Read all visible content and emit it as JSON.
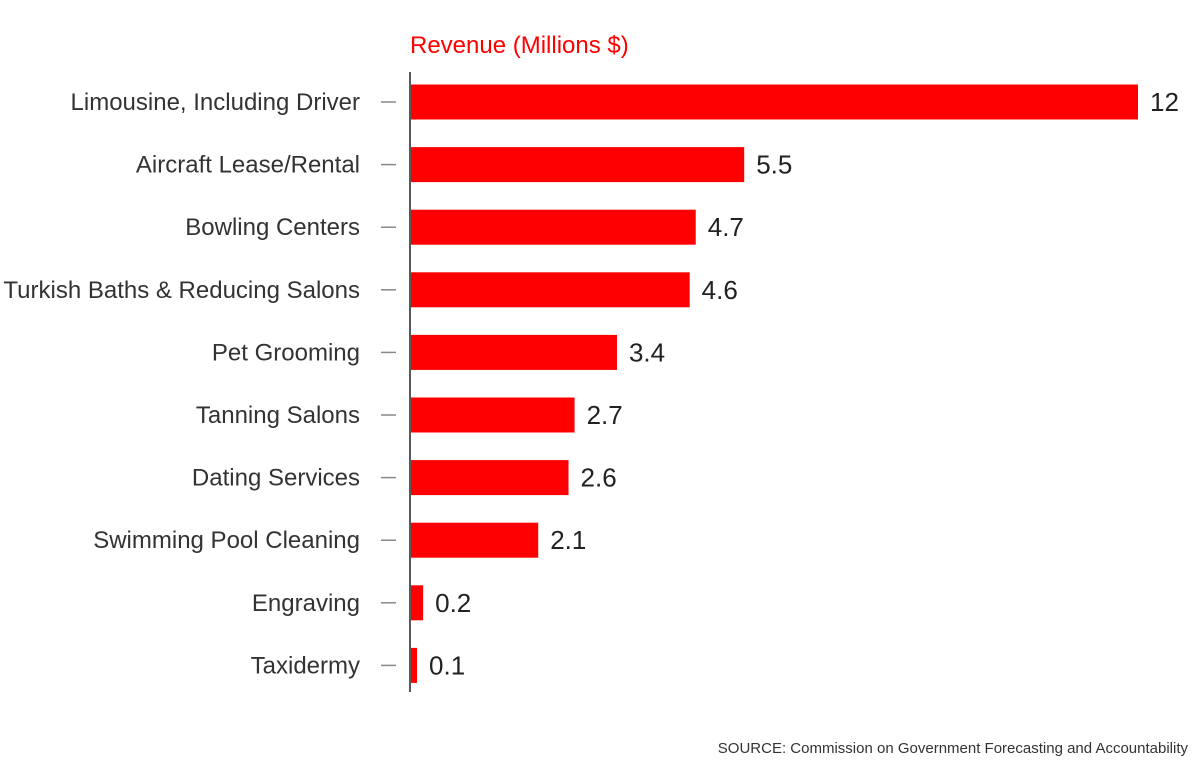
{
  "chart_data": {
    "type": "bar",
    "orientation": "horizontal",
    "title": "Revenue (Millions $)",
    "categories": [
      "Limousine, Including Driver",
      "Aircraft Lease/Rental",
      "Bowling Centers",
      "Turkish Baths & Reducing Salons",
      "Pet Grooming",
      "Tanning Salons",
      "Dating Services",
      "Swimming Pool Cleaning",
      "Engraving",
      "Taxidermy"
    ],
    "values": [
      12,
      5.5,
      4.7,
      4.6,
      3.4,
      2.7,
      2.6,
      2.1,
      0.2,
      0.1
    ],
    "value_labels": [
      "12",
      "5.5",
      "4.7",
      "4.6",
      "3.4",
      "2.7",
      "2.6",
      "2.1",
      "0.2",
      "0.1"
    ],
    "xlim": [
      0,
      12
    ],
    "grid": false,
    "bar_color": "#ff0000",
    "title_color": "#ff0000",
    "source": "SOURCE: Commission on Government Forecasting and Accountability"
  }
}
